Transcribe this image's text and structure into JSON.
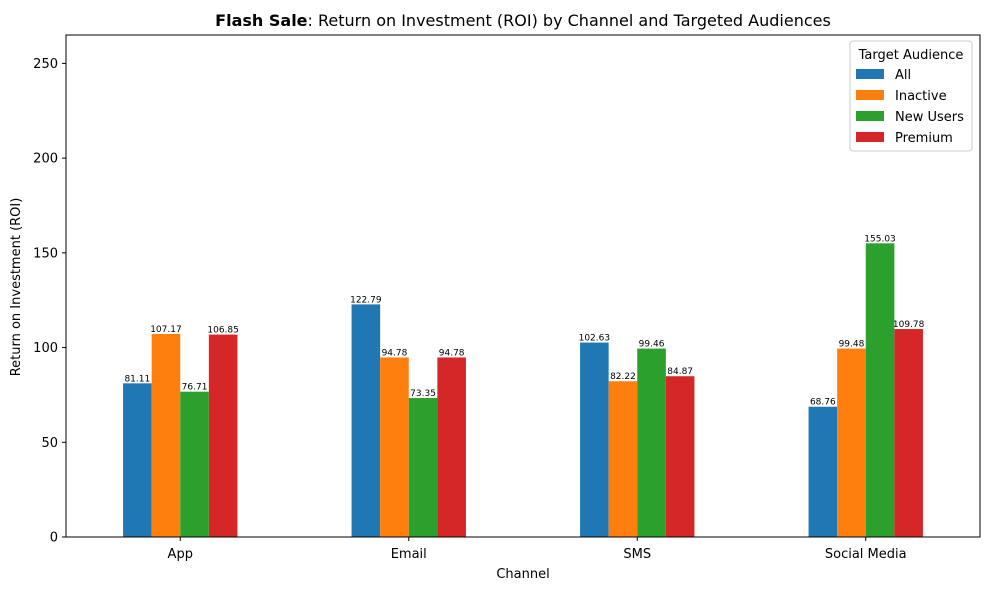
{
  "chart_data": {
    "type": "bar",
    "title_bold": "Flash Sale",
    "title_rest": ": Return on Investment (ROI) by Channel and Targeted Audiences",
    "xlabel": "Channel",
    "ylabel": "Return on Investment (ROI)",
    "categories": [
      "App",
      "Email",
      "SMS",
      "Social Media"
    ],
    "ylim": [
      0,
      265
    ],
    "yticks": [
      0,
      50,
      100,
      150,
      200,
      250
    ],
    "legend": {
      "title": "Target Audience",
      "position": "top-right"
    },
    "series": [
      {
        "name": "All",
        "color": "#1f77b4",
        "values": [
          81.11,
          122.79,
          102.63,
          68.76
        ]
      },
      {
        "name": "Inactive",
        "color": "#ff7f0e",
        "values": [
          107.17,
          94.78,
          82.22,
          99.48
        ]
      },
      {
        "name": "New Users",
        "color": "#2ca02c",
        "values": [
          76.71,
          73.35,
          99.46,
          155.03
        ]
      },
      {
        "name": "Premium",
        "color": "#d62728",
        "values": [
          106.85,
          94.78,
          84.87,
          109.78
        ]
      }
    ]
  }
}
